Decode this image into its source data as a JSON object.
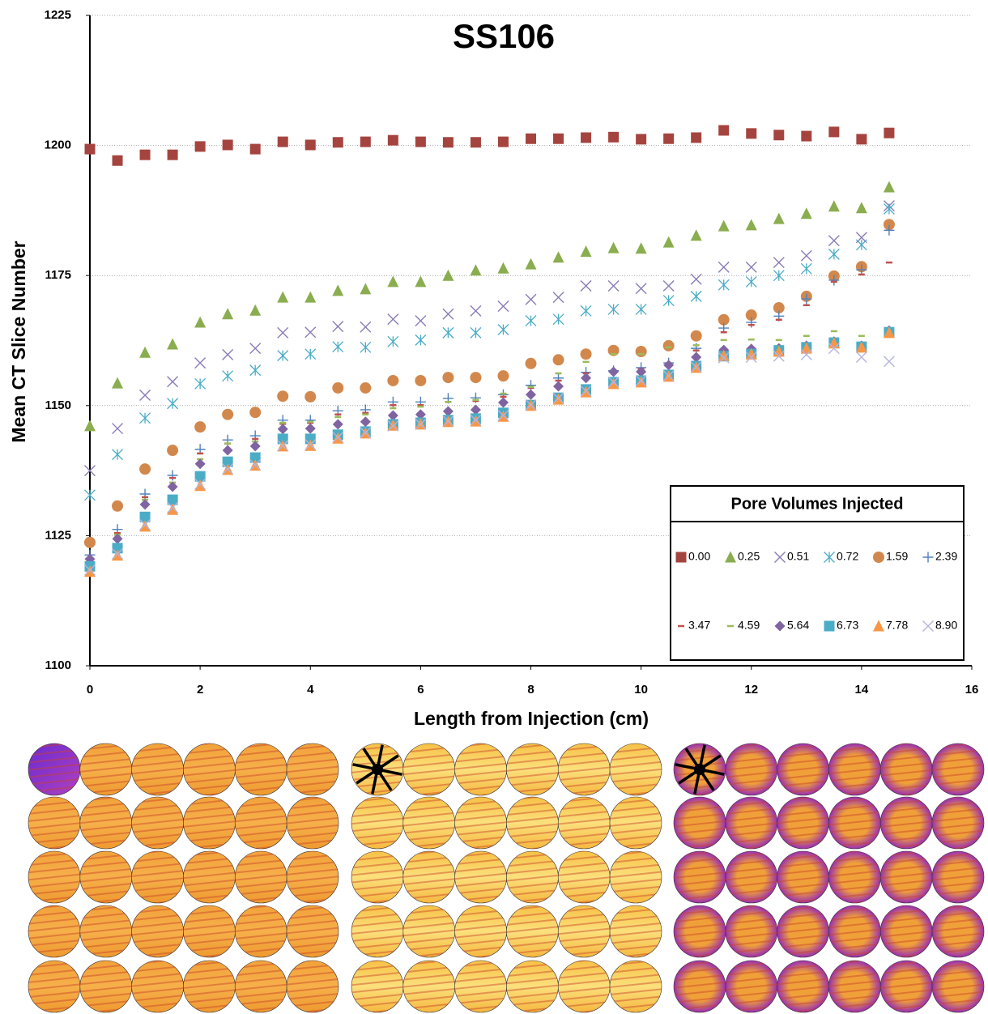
{
  "chart_data": {
    "type": "scatter",
    "title": "SS106",
    "x_label": "Length from Injection (cm)",
    "y_label": "Mean CT Slice Number",
    "legend_title": "Pore Volumes  Injected",
    "legend_position": "lower right",
    "grid": true,
    "xlim": [
      0,
      16
    ],
    "xticks": [
      0,
      2,
      4,
      6,
      8,
      10,
      12,
      14,
      16
    ],
    "ylim": [
      1100,
      1225
    ],
    "yticks": [
      1100,
      1125,
      1150,
      1175,
      1200,
      1225
    ],
    "x": [
      0,
      0.5,
      1,
      1.5,
      2,
      2.5,
      3,
      3.5,
      4,
      4.5,
      5,
      5.5,
      6,
      6.5,
      7,
      7.5,
      8,
      8.5,
      9,
      9.5,
      10,
      10.5,
      11,
      11.5,
      12,
      12.5,
      13,
      13.5,
      14,
      14.5
    ],
    "series": [
      {
        "name": "0.00",
        "color": "#a5443f",
        "marker": "square",
        "values": [
          1199.3,
          1197.1,
          1198.2,
          1198.2,
          1199.8,
          1200.1,
          1199.3,
          1200.7,
          1200.1,
          1200.6,
          1200.7,
          1201.0,
          1200.7,
          1200.6,
          1200.6,
          1200.7,
          1201.3,
          1201.3,
          1201.5,
          1201.6,
          1201.2,
          1201.3,
          1201.5,
          1202.9,
          1202.3,
          1202.0,
          1201.8,
          1202.6,
          1201.2,
          1202.4
        ]
      },
      {
        "name": "0.25",
        "color": "#8aad4f",
        "marker": "triangle",
        "values": [
          1146.1,
          1154.3,
          1160.2,
          1161.8,
          1166.0,
          1167.6,
          1168.3,
          1170.8,
          1170.8,
          1172.1,
          1172.4,
          1173.8,
          1173.8,
          1175.0,
          1176.0,
          1176.4,
          1177.2,
          1178.5,
          1179.6,
          1180.3,
          1180.2,
          1181.4,
          1182.7,
          1184.5,
          1184.7,
          1185.9,
          1186.9,
          1188.3,
          1188.0,
          1192.0
        ]
      },
      {
        "name": "0.51",
        "color": "#8a7cb5",
        "marker": "x",
        "values": [
          1137.5,
          1145.6,
          1152.0,
          1154.6,
          1158.2,
          1159.8,
          1161.0,
          1164.0,
          1164.1,
          1165.2,
          1165.1,
          1166.6,
          1166.3,
          1167.6,
          1168.2,
          1169.1,
          1170.4,
          1170.8,
          1173.0,
          1173.0,
          1172.5,
          1173.0,
          1174.3,
          1176.6,
          1176.6,
          1177.5,
          1178.8,
          1181.7,
          1182.3,
          1188.4
        ]
      },
      {
        "name": "0.72",
        "color": "#4bacc6",
        "marker": "asterisk",
        "values": [
          1132.8,
          1140.6,
          1147.6,
          1150.4,
          1154.2,
          1155.7,
          1156.8,
          1159.6,
          1159.9,
          1161.3,
          1161.2,
          1162.3,
          1162.6,
          1164.0,
          1164.0,
          1164.6,
          1166.3,
          1166.6,
          1168.2,
          1168.5,
          1168.5,
          1170.2,
          1171.0,
          1173.2,
          1173.8,
          1175.0,
          1176.3,
          1179.1,
          1180.9,
          1187.8
        ]
      },
      {
        "name": "1.59",
        "color": "#d2884c",
        "marker": "circle",
        "values": [
          1123.7,
          1130.7,
          1137.8,
          1141.4,
          1145.9,
          1148.3,
          1148.7,
          1151.8,
          1151.7,
          1153.4,
          1153.4,
          1154.8,
          1154.8,
          1155.4,
          1155.4,
          1155.7,
          1158.1,
          1158.8,
          1159.9,
          1160.6,
          1160.4,
          1161.5,
          1163.4,
          1166.5,
          1167.4,
          1168.8,
          1171.0,
          1174.9,
          1176.7,
          1184.8
        ]
      },
      {
        "name": "2.39",
        "color": "#4f81bd",
        "marker": "plus",
        "values": [
          1121.3,
          1126.2,
          1133.0,
          1136.6,
          1141.6,
          1143.4,
          1144.2,
          1147.2,
          1147.2,
          1149.0,
          1149.2,
          1150.7,
          1150.7,
          1151.4,
          1151.5,
          1152.1,
          1153.9,
          1155.3,
          1156.4,
          1156.7,
          1157.3,
          1158.2,
          1161.0,
          1164.9,
          1166.0,
          1167.2,
          1170.5,
          1174.1,
          1176.1,
          1183.7
        ]
      },
      {
        "name": "3.47",
        "color": "#c0504d",
        "marker": "dash",
        "values": [
          1120.5,
          1125.5,
          1132.4,
          1136.1,
          1140.8,
          1142.7,
          1143.6,
          1146.5,
          1146.7,
          1148.3,
          1148.6,
          1150.1,
          1150.1,
          1150.7,
          1150.9,
          1151.7,
          1153.4,
          1154.8,
          1156.2,
          1156.4,
          1157.0,
          1157.9,
          1160.6,
          1164.1,
          1165.5,
          1166.5,
          1169.3,
          1173.8,
          1175.2,
          1177.5
        ]
      },
      {
        "name": "4.59",
        "color": "#9bbb59",
        "marker": "dash",
        "values": [
          1120.5,
          1125.2,
          1131.9,
          1135.2,
          1139.7,
          1142.7,
          1143.1,
          1146.7,
          1146.9,
          1147.8,
          1148.3,
          1149.5,
          1149.8,
          1150.7,
          1151.1,
          1152.3,
          1153.6,
          1156.2,
          1158.4,
          1159.9,
          1159.9,
          1161.2,
          1161.6,
          1162.6,
          1162.7,
          1162.6,
          1163.4,
          1164.3,
          1163.4,
          1163.4
        ]
      },
      {
        "name": "5.64",
        "color": "#8064a2",
        "marker": "diamond",
        "values": [
          1120.5,
          1124.4,
          1131.0,
          1134.4,
          1138.8,
          1141.4,
          1142.2,
          1145.5,
          1145.6,
          1146.4,
          1146.9,
          1148.1,
          1148.3,
          1148.9,
          1149.2,
          1150.6,
          1152.1,
          1153.7,
          1155.3,
          1156.5,
          1156.5,
          1157.8,
          1159.3,
          1160.7,
          1160.9,
          1161.0,
          1161.5,
          1162.3,
          1161.5,
          1164.4
        ]
      },
      {
        "name": "6.73",
        "color": "#4bacc6",
        "marker": "square",
        "values": [
          1119.1,
          1122.6,
          1128.6,
          1131.9,
          1136.4,
          1139.2,
          1140.0,
          1143.6,
          1143.6,
          1144.4,
          1145.0,
          1146.4,
          1146.7,
          1147.2,
          1147.5,
          1148.6,
          1150.1,
          1151.5,
          1153.1,
          1154.5,
          1154.8,
          1155.9,
          1157.6,
          1159.5,
          1159.9,
          1160.6,
          1161.2,
          1162.1,
          1161.3,
          1164.1
        ]
      },
      {
        "name": "7.78",
        "color": "#f79646",
        "marker": "triangle",
        "values": [
          1118.1,
          1121.2,
          1126.8,
          1130.0,
          1134.6,
          1137.7,
          1138.5,
          1142.2,
          1142.3,
          1143.7,
          1144.7,
          1146.2,
          1146.4,
          1146.9,
          1147.0,
          1147.9,
          1150.0,
          1151.2,
          1152.6,
          1154.2,
          1154.5,
          1155.6,
          1157.3,
          1159.6,
          1159.9,
          1160.4,
          1161.0,
          1162.0,
          1161.2,
          1164.0
        ]
      },
      {
        "name": "8.90",
        "color": "#b4b4de",
        "marker": "x",
        "values": [
          1118.4,
          1121.5,
          1127.1,
          1130.4,
          1134.9,
          1137.8,
          1138.6,
          1142.3,
          1142.5,
          1143.9,
          1144.8,
          1146.1,
          1146.4,
          1147.0,
          1147.2,
          1148.1,
          1150.1,
          1151.4,
          1152.8,
          1154.5,
          1154.8,
          1155.7,
          1157.4,
          1159.2,
          1159.3,
          1159.5,
          1159.8,
          1161.0,
          1159.3,
          1158.5
        ]
      }
    ]
  }
}
